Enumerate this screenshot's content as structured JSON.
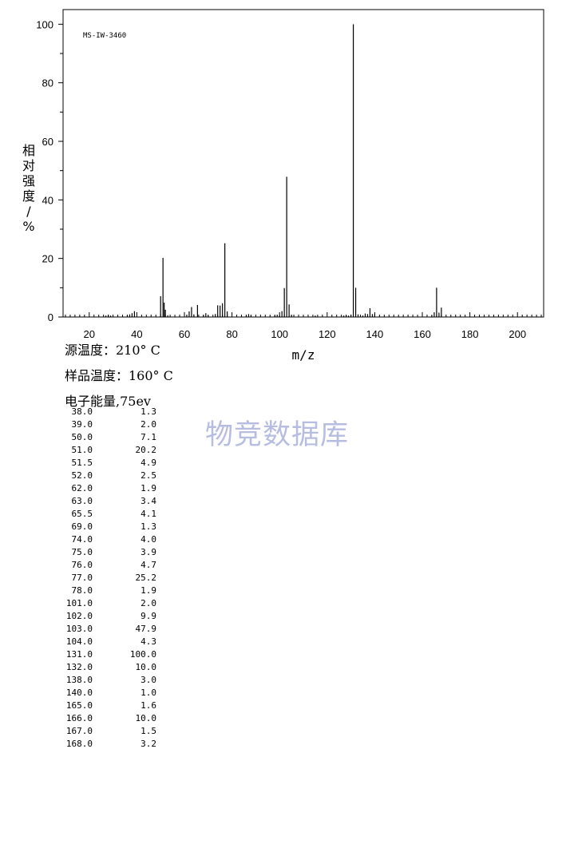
{
  "chart_data": {
    "type": "bar",
    "sample_id": "MS-IW-3460",
    "ylabel": "相对强度/%",
    "xlabel": "m/z",
    "xlim": [
      9,
      211
    ],
    "ylim": [
      0,
      105
    ],
    "x_ticks": [
      20,
      40,
      60,
      80,
      100,
      120,
      140,
      160,
      180,
      200
    ],
    "y_ticks": [
      0,
      20,
      40,
      60,
      80,
      100
    ],
    "grid": false,
    "series": [
      {
        "x": [
          27,
          28,
          29,
          36,
          37,
          38,
          39,
          50,
          51,
          51.5,
          52,
          53,
          61,
          62,
          63,
          64,
          65.5,
          68,
          69,
          70,
          73,
          74,
          75,
          76,
          77,
          78,
          86,
          87,
          88,
          98,
          99,
          100,
          101,
          102,
          103,
          104,
          105,
          115,
          127,
          128,
          129,
          130,
          131,
          132,
          133,
          135,
          136,
          137,
          138,
          139,
          140,
          164,
          165,
          166,
          167,
          168
        ],
        "values": [
          0.5,
          0.8,
          0.5,
          0.6,
          0.9,
          1.3,
          2.0,
          7.1,
          20.2,
          4.9,
          2.5,
          0.6,
          0.8,
          1.9,
          3.4,
          0.9,
          4.1,
          0.6,
          1.3,
          0.5,
          1.0,
          4.0,
          3.9,
          4.7,
          25.2,
          1.9,
          0.7,
          1.0,
          0.6,
          0.5,
          0.8,
          0.6,
          2.0,
          9.9,
          47.9,
          4.3,
          0.8,
          0.5,
          0.5,
          0.6,
          0.5,
          0.8,
          100.0,
          10.0,
          0.9,
          0.5,
          1.2,
          1.0,
          3.0,
          1.0,
          1.0,
          0.5,
          1.6,
          10.0,
          1.5,
          3.2
        ]
      }
    ]
  },
  "conditions": {
    "source_temp": "源温度：210° C",
    "sample_temp": "样品温度：160° C",
    "electron_energy": "电子能量,75ev"
  },
  "peak_table": [
    {
      "mz": "38.0",
      "intensity": "1.3"
    },
    {
      "mz": "39.0",
      "intensity": "2.0"
    },
    {
      "mz": "50.0",
      "intensity": "7.1"
    },
    {
      "mz": "51.0",
      "intensity": "20.2"
    },
    {
      "mz": "51.5",
      "intensity": "4.9"
    },
    {
      "mz": "52.0",
      "intensity": "2.5"
    },
    {
      "mz": "62.0",
      "intensity": "1.9"
    },
    {
      "mz": "63.0",
      "intensity": "3.4"
    },
    {
      "mz": "65.5",
      "intensity": "4.1"
    },
    {
      "mz": "69.0",
      "intensity": "1.3"
    },
    {
      "mz": "74.0",
      "intensity": "4.0"
    },
    {
      "mz": "75.0",
      "intensity": "3.9"
    },
    {
      "mz": "76.0",
      "intensity": "4.7"
    },
    {
      "mz": "77.0",
      "intensity": "25.2"
    },
    {
      "mz": "78.0",
      "intensity": "1.9"
    },
    {
      "mz": "101.0",
      "intensity": "2.0"
    },
    {
      "mz": "102.0",
      "intensity": "9.9"
    },
    {
      "mz": "103.0",
      "intensity": "47.9"
    },
    {
      "mz": "104.0",
      "intensity": "4.3"
    },
    {
      "mz": "131.0",
      "intensity": "100.0"
    },
    {
      "mz": "132.0",
      "intensity": "10.0"
    },
    {
      "mz": "138.0",
      "intensity": "3.0"
    },
    {
      "mz": "140.0",
      "intensity": "1.0"
    },
    {
      "mz": "165.0",
      "intensity": "1.6"
    },
    {
      "mz": "166.0",
      "intensity": "10.0"
    },
    {
      "mz": "167.0",
      "intensity": "1.5"
    },
    {
      "mz": "168.0",
      "intensity": "3.2"
    }
  ],
  "watermark": "物竞数据库"
}
